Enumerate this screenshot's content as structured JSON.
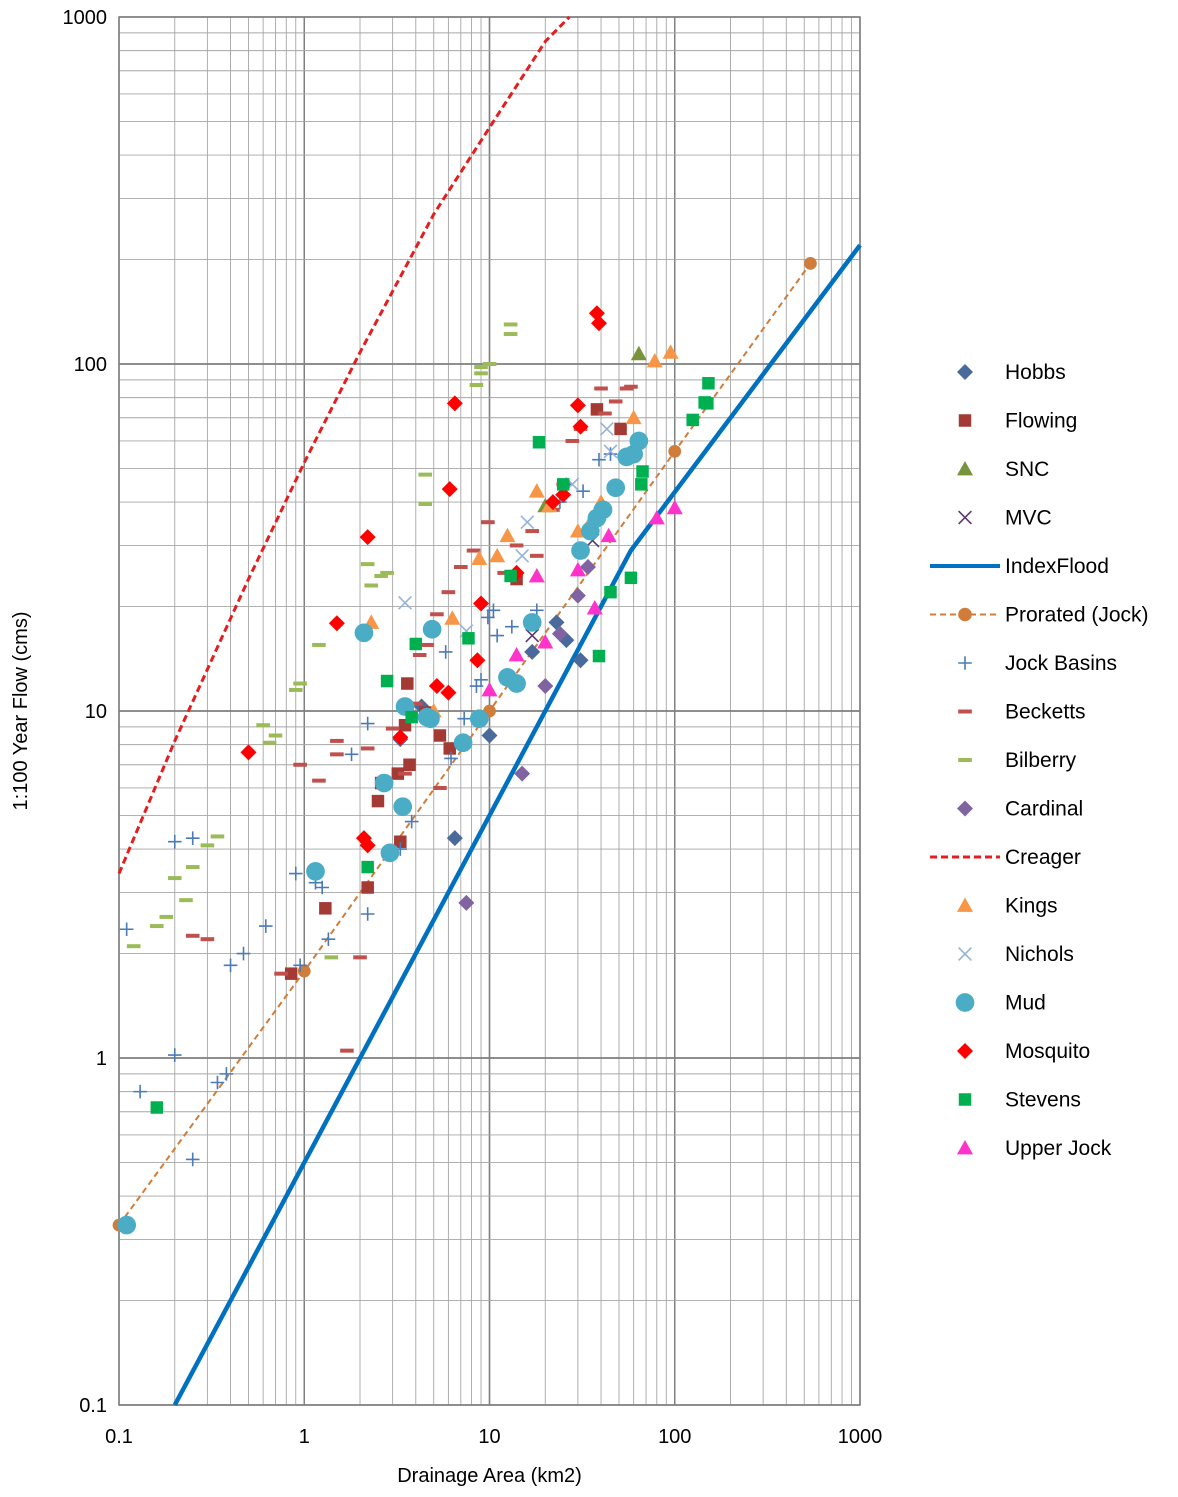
{
  "chart_data": {
    "type": "scatter",
    "xscale": "log",
    "yscale": "log",
    "xlim": [
      0.1,
      1000
    ],
    "ylim": [
      0.1,
      1000
    ],
    "grid": true,
    "legend_position": "right",
    "xlabel": "Drainage Area (km2)",
    "ylabel": "1:100 Year Flow (cms)",
    "x_ticks": [
      "0.1",
      "1",
      "10",
      "100",
      "1000"
    ],
    "y_ticks": [
      "0.1",
      "1",
      "10",
      "100",
      "1000"
    ],
    "series": [
      {
        "name": "Hobbs",
        "marker": "diamond",
        "color": "#4a6a9c",
        "line": "none",
        "points": [
          [
            3.3,
            8.3
          ],
          [
            4.3,
            10.3
          ],
          [
            6.5,
            4.3
          ],
          [
            10,
            8.5
          ],
          [
            17,
            14.8
          ],
          [
            23,
            18
          ],
          [
            26,
            16
          ],
          [
            31,
            14
          ]
        ]
      },
      {
        "name": "Flowing",
        "marker": "square",
        "color": "#a33a34",
        "line": "none",
        "points": [
          [
            0.85,
            1.75
          ],
          [
            1.3,
            2.7
          ],
          [
            2.2,
            3.1
          ],
          [
            2.5,
            5.5
          ],
          [
            2.6,
            6.2
          ],
          [
            3.2,
            6.6
          ],
          [
            3.5,
            9.1
          ],
          [
            3.6,
            12
          ],
          [
            3.3,
            4.2
          ],
          [
            3.7,
            7
          ],
          [
            4.5,
            9.9
          ],
          [
            5.4,
            8.5
          ],
          [
            6.1,
            7.8
          ],
          [
            14,
            24
          ],
          [
            38,
            74
          ],
          [
            51,
            65
          ]
        ]
      },
      {
        "name": "SNC",
        "marker": "triangle",
        "color": "#77933c",
        "line": "none",
        "points": [
          [
            20,
            39
          ],
          [
            64,
            107
          ]
        ]
      },
      {
        "name": "MVC",
        "marker": "x",
        "color": "#5a3a6e",
        "line": "none",
        "points": [
          [
            17,
            16.5
          ],
          [
            36,
            31
          ]
        ]
      },
      {
        "name": "IndexFlood",
        "marker": "none",
        "color": "#0070c0",
        "line": "solid",
        "points": [
          [
            0.2,
            0.1
          ],
          [
            1,
            0.5
          ],
          [
            10,
            5
          ],
          [
            58,
            29
          ],
          [
            1000,
            220
          ]
        ]
      },
      {
        "name": "Prorated (Jock)",
        "marker": "circle",
        "color": "#d07c3a",
        "line": "dashed",
        "points": [
          [
            0.1,
            0.33
          ],
          [
            1,
            1.78
          ],
          [
            10,
            10
          ],
          [
            100,
            56
          ],
          [
            540,
            195
          ]
        ]
      },
      {
        "name": "Jock Basins",
        "marker": "plus",
        "color": "#4a7ab8",
        "line": "none",
        "points": [
          [
            0.11,
            2.35
          ],
          [
            0.13,
            0.8
          ],
          [
            0.2,
            4.2
          ],
          [
            0.25,
            4.3
          ],
          [
            0.2,
            1.02
          ],
          [
            0.25,
            0.51
          ],
          [
            0.34,
            0.85
          ],
          [
            0.38,
            0.9
          ],
          [
            0.4,
            1.85
          ],
          [
            0.47,
            2
          ],
          [
            0.62,
            2.4
          ],
          [
            0.9,
            3.4
          ],
          [
            0.95,
            1.85
          ],
          [
            1.15,
            3.2
          ],
          [
            1.25,
            3.1
          ],
          [
            1.35,
            2.2
          ],
          [
            1.8,
            7.5
          ],
          [
            2.2,
            9.2
          ],
          [
            2.2,
            2.6
          ],
          [
            3.3,
            4
          ],
          [
            3.8,
            4.8
          ],
          [
            5.8,
            14.8
          ],
          [
            6.2,
            7.3
          ],
          [
            7.3,
            9.5
          ],
          [
            8.5,
            11.8
          ],
          [
            9,
            12.3
          ],
          [
            9.8,
            18.6
          ],
          [
            10.5,
            19.5
          ],
          [
            11,
            16.5
          ],
          [
            13.2,
            17.5
          ],
          [
            18,
            19.5
          ],
          [
            24,
            40
          ],
          [
            26,
            45
          ],
          [
            32,
            43
          ],
          [
            39,
            53
          ],
          [
            45,
            55
          ]
        ]
      },
      {
        "name": "Becketts",
        "marker": "dash",
        "color": "#c0504d",
        "line": "none",
        "points": [
          [
            0.25,
            2.25
          ],
          [
            0.3,
            2.2
          ],
          [
            0.75,
            1.75
          ],
          [
            0.95,
            7
          ],
          [
            1.2,
            6.3
          ],
          [
            1.5,
            8.2
          ],
          [
            1.5,
            7.5
          ],
          [
            1.7,
            1.05
          ],
          [
            2.0,
            1.95
          ],
          [
            2.2,
            7.8
          ],
          [
            3,
            8.9
          ],
          [
            3.5,
            6.6
          ],
          [
            4,
            10.5
          ],
          [
            4.2,
            14.5
          ],
          [
            4.6,
            15.5
          ],
          [
            5.2,
            19
          ],
          [
            5.4,
            6
          ],
          [
            6,
            22
          ],
          [
            7,
            26
          ],
          [
            8.2,
            29
          ],
          [
            9.8,
            35
          ],
          [
            12,
            25
          ],
          [
            14,
            30
          ],
          [
            17,
            33
          ],
          [
            18,
            28
          ],
          [
            22,
            38
          ],
          [
            25,
            45
          ],
          [
            28,
            60
          ],
          [
            31,
            65
          ],
          [
            40,
            85
          ],
          [
            42,
            72
          ],
          [
            48,
            78
          ],
          [
            55,
            85
          ],
          [
            58,
            86
          ]
        ]
      },
      {
        "name": "Bilberry",
        "marker": "dash",
        "color": "#9bbb59",
        "line": "none",
        "points": [
          [
            0.12,
            2.1
          ],
          [
            0.16,
            2.4
          ],
          [
            0.18,
            2.55
          ],
          [
            0.2,
            3.3
          ],
          [
            0.23,
            2.85
          ],
          [
            0.25,
            3.55
          ],
          [
            0.3,
            4.1
          ],
          [
            0.34,
            4.35
          ],
          [
            0.6,
            9.1
          ],
          [
            0.65,
            8.1
          ],
          [
            0.7,
            8.5
          ],
          [
            0.9,
            11.5
          ],
          [
            0.95,
            12
          ],
          [
            1.2,
            15.5
          ],
          [
            1.4,
            1.95
          ],
          [
            2.2,
            26.5
          ],
          [
            2.3,
            23
          ],
          [
            2.6,
            24.5
          ],
          [
            2.8,
            25
          ],
          [
            4.5,
            39.5
          ],
          [
            4.5,
            48
          ],
          [
            8.5,
            87
          ],
          [
            9,
            94
          ],
          [
            9,
            98
          ],
          [
            10,
            100
          ],
          [
            13,
            130
          ],
          [
            13,
            122
          ]
        ]
      },
      {
        "name": "Cardinal",
        "marker": "diamond",
        "color": "#8064a2",
        "line": "none",
        "points": [
          [
            7.5,
            2.8
          ],
          [
            15,
            6.6
          ],
          [
            20,
            11.8
          ],
          [
            24,
            16.7
          ],
          [
            30,
            21.5
          ],
          [
            34,
            26
          ]
        ]
      },
      {
        "name": "Creager",
        "marker": "none",
        "color": "#e41e1e",
        "line": "dotted",
        "points": [
          [
            0.1,
            3.4
          ],
          [
            0.2,
            8.2
          ],
          [
            0.5,
            24
          ],
          [
            1,
            52
          ],
          [
            2,
            108
          ],
          [
            5,
            270
          ],
          [
            10,
            480
          ],
          [
            20,
            850
          ],
          [
            27,
            1000
          ]
        ]
      },
      {
        "name": "Kings",
        "marker": "triangle",
        "color": "#f79646",
        "line": "none",
        "points": [
          [
            2.3,
            18
          ],
          [
            5,
            10
          ],
          [
            6.3,
            18.5
          ],
          [
            8.8,
            27.5
          ],
          [
            11,
            28
          ],
          [
            12.5,
            32
          ],
          [
            18,
            43
          ],
          [
            21,
            39
          ],
          [
            30,
            33
          ],
          [
            35,
            35
          ],
          [
            40,
            40
          ],
          [
            60,
            70
          ],
          [
            78,
            102
          ],
          [
            95,
            108
          ]
        ]
      },
      {
        "name": "Nichols",
        "marker": "x",
        "color": "#95b3d7",
        "line": "none",
        "points": [
          [
            3.5,
            20.5
          ],
          [
            7.5,
            17
          ],
          [
            15,
            28
          ],
          [
            16,
            35
          ],
          [
            28,
            45
          ],
          [
            43,
            65
          ],
          [
            45,
            56
          ]
        ]
      },
      {
        "name": "Mud",
        "marker": "circle",
        "color": "#4bacc6",
        "line": "none",
        "points": [
          [
            0.11,
            0.33
          ],
          [
            1.15,
            3.45
          ],
          [
            2.1,
            16.8
          ],
          [
            2.7,
            6.2
          ],
          [
            2.9,
            3.9
          ],
          [
            3.4,
            5.3
          ],
          [
            3.5,
            10.3
          ],
          [
            4.6,
            9.6
          ],
          [
            4.8,
            9.5
          ],
          [
            4.9,
            17.2
          ],
          [
            7.2,
            8.1
          ],
          [
            8.8,
            9.5
          ],
          [
            12.5,
            12.5
          ],
          [
            14,
            12
          ],
          [
            17,
            18
          ],
          [
            31,
            29
          ],
          [
            35,
            33
          ],
          [
            38,
            36
          ],
          [
            41,
            38
          ],
          [
            48,
            44
          ],
          [
            55,
            54
          ],
          [
            60,
            55
          ],
          [
            64,
            60
          ]
        ]
      },
      {
        "name": "Mosquito",
        "marker": "diamond",
        "color": "#ff0000",
        "line": "none",
        "points": [
          [
            0.5,
            7.6
          ],
          [
            1.5,
            17.9
          ],
          [
            2.1,
            4.3
          ],
          [
            2.2,
            4.1
          ],
          [
            2.2,
            31.7
          ],
          [
            3.3,
            8.4
          ],
          [
            5.2,
            11.8
          ],
          [
            6,
            11.3
          ],
          [
            6.1,
            43.6
          ],
          [
            6.5,
            77
          ],
          [
            8.6,
            14
          ],
          [
            9,
            20.4
          ],
          [
            14,
            25
          ],
          [
            22,
            40
          ],
          [
            25,
            42
          ],
          [
            30,
            76
          ],
          [
            31,
            66
          ],
          [
            38,
            140
          ],
          [
            39,
            131
          ]
        ]
      },
      {
        "name": "Stevens",
        "marker": "square",
        "color": "#00b050",
        "line": "none",
        "points": [
          [
            0.16,
            0.72
          ],
          [
            2.2,
            3.55
          ],
          [
            2.8,
            12.2
          ],
          [
            3.8,
            9.6
          ],
          [
            4,
            15.6
          ],
          [
            7.7,
            16.2
          ],
          [
            13,
            24.5
          ],
          [
            18.5,
            59.5
          ],
          [
            25,
            45
          ],
          [
            39,
            14.4
          ],
          [
            45,
            22
          ],
          [
            58,
            24.2
          ],
          [
            66,
            45
          ],
          [
            67,
            49
          ],
          [
            125,
            69
          ],
          [
            145,
            77.5
          ],
          [
            150,
            77
          ],
          [
            152,
            88
          ]
        ]
      },
      {
        "name": "Upper Jock",
        "marker": "triangle",
        "color": "#ff33cc",
        "line": "none",
        "points": [
          [
            10,
            11.5
          ],
          [
            14,
            14.5
          ],
          [
            18,
            24.5
          ],
          [
            20,
            15.8
          ],
          [
            30,
            25.5
          ],
          [
            37,
            19.8
          ],
          [
            44,
            32
          ],
          [
            80,
            36
          ],
          [
            100,
            38.5
          ]
        ]
      }
    ]
  }
}
